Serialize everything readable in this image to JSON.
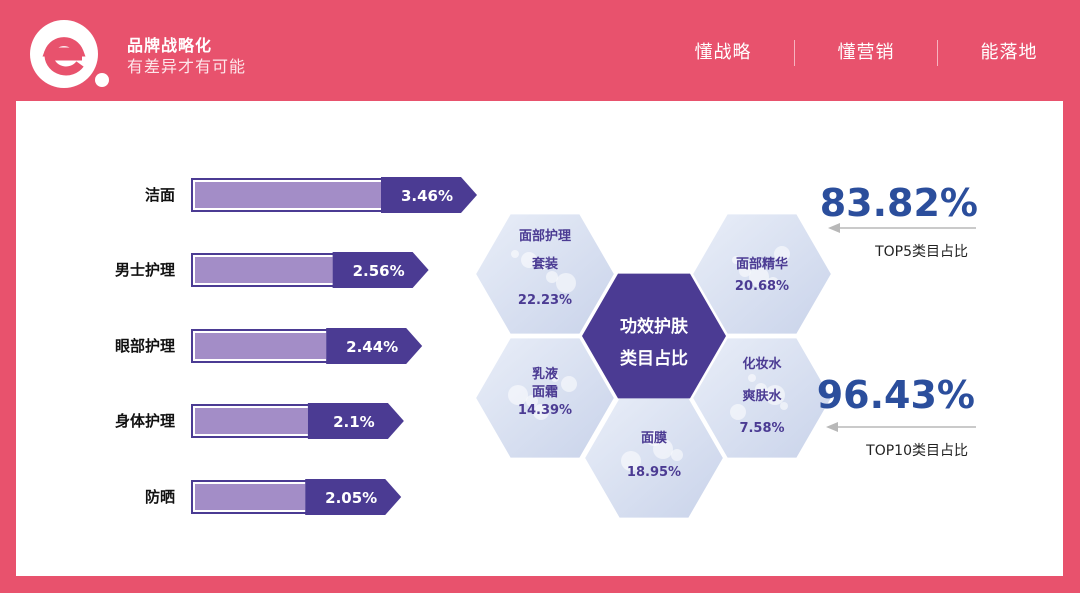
{
  "header": {
    "brand_title": "品牌战略化",
    "brand_subtitle": "有差异才有可能",
    "nav": [
      "懂战略",
      "懂营销",
      "能落地"
    ]
  },
  "colors": {
    "background": "#e8526d",
    "bar_fill": "#a38dc7",
    "bar_label": "#4b3b93",
    "hex_center": "#4b3b93",
    "hex_text": "#4b3b93",
    "stat_blue": "#2b4e9c"
  },
  "chart_data": [
    {
      "type": "bar",
      "orientation": "horizontal",
      "categories": [
        "洁面",
        "男士护理",
        "眼部护理",
        "身体护理",
        "防晒"
      ],
      "values": [
        3.46,
        2.56,
        2.44,
        2.1,
        2.05
      ],
      "value_labels": [
        "3.46%",
        "2.56%",
        "2.44%",
        "2.1%",
        "2.05%"
      ],
      "unit": "%",
      "xlim": [
        0,
        3.46
      ]
    },
    {
      "type": "hexagon-cluster",
      "center_label": [
        "功效护肤",
        "类目占比"
      ],
      "segments": [
        {
          "name_lines": [
            "面部护理",
            "套装"
          ],
          "value": 22.23,
          "label": "22.23%"
        },
        {
          "name_lines": [
            "面部精华"
          ],
          "value": 20.68,
          "label": "20.68%"
        },
        {
          "name_lines": [
            "乳液",
            "面霜"
          ],
          "value": 14.39,
          "label": "14.39%"
        },
        {
          "name_lines": [
            "面膜"
          ],
          "value": 18.95,
          "label": "18.95%"
        },
        {
          "name_lines": [
            "化妆水",
            "爽肤水"
          ],
          "value": 7.58,
          "label": "7.58%"
        }
      ]
    }
  ],
  "stats": [
    {
      "value": "83.82%",
      "caption": "TOP5类目占比"
    },
    {
      "value": "96.43%",
      "caption": "TOP10类目占比"
    }
  ]
}
